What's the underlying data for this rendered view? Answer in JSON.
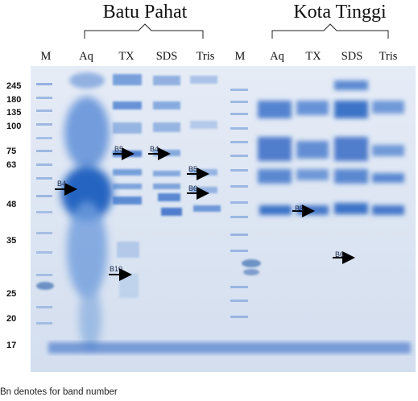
{
  "sites": [
    {
      "name": "Batu Pahat"
    },
    {
      "name": "Kota Tinggi"
    }
  ],
  "lanes": [
    "M",
    "Aq",
    "TX",
    "SDS",
    "Tris",
    "M",
    "Aq",
    "TX",
    "SDS",
    "Tris"
  ],
  "mw_markers": [
    "245",
    "180",
    "135",
    "100",
    "75",
    "63",
    "48",
    "35",
    "25",
    "20",
    "17"
  ],
  "band_labels": [
    "B5",
    "B4",
    "B4",
    "B5",
    "B6",
    "B10",
    "B5",
    "B6"
  ],
  "footnote": "Bn denotes for band number",
  "colors": {
    "gel_bg": "#d9e3f1",
    "band_dark": "#1f5fbf",
    "band_mid": "#5d8fd6",
    "arrow": "#000000"
  }
}
